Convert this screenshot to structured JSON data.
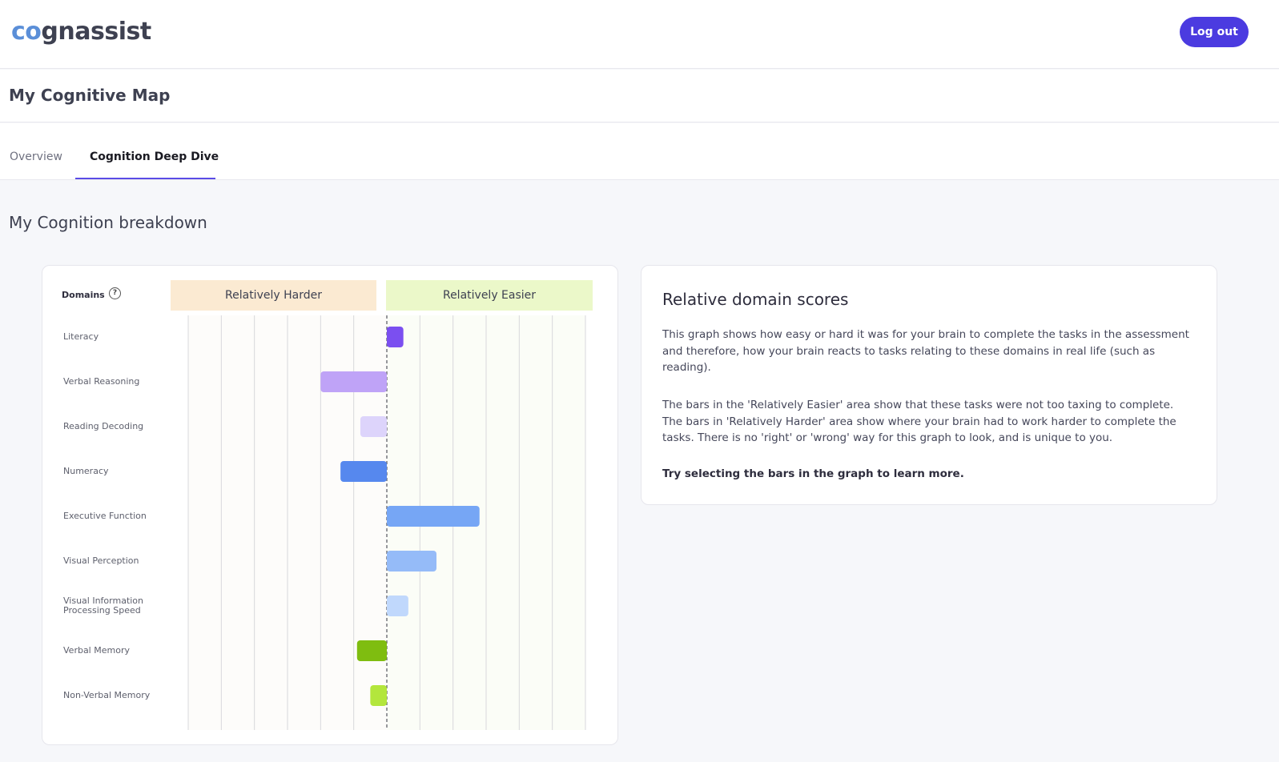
{
  "header": {
    "logo_prefix": "co",
    "logo_suffix": "gnassist",
    "logout_label": "Log out"
  },
  "page": {
    "title": "My Cognitive Map"
  },
  "tabs": [
    {
      "label": "Overview",
      "active": false
    },
    {
      "label": "Cognition Deep Dive",
      "active": true
    }
  ],
  "section": {
    "title": "My Cognition breakdown"
  },
  "chart": {
    "domains_label": "Domains",
    "help_glyph": "?",
    "harder_label": "Relatively Harder",
    "easier_label": "Relatively Easier"
  },
  "chart_data": {
    "type": "bar",
    "orientation": "horizontal-diverging",
    "categories": [
      "Literacy",
      "Verbal Reasoning",
      "Reading Decoding",
      "Numeracy",
      "Executive Function",
      "Visual Perception",
      "Visual Information Processing Speed",
      "Verbal Memory",
      "Non-Verbal Memory"
    ],
    "values": [
      0.5,
      -2.0,
      -0.8,
      -1.4,
      2.8,
      1.5,
      0.65,
      -0.9,
      -0.5
    ],
    "colors": [
      "#7b4ff0",
      "#bfa3f7",
      "#ddd4fb",
      "#5688ee",
      "#76a6f5",
      "#95bbf8",
      "#c0d8fc",
      "#7fbd10",
      "#b3e63c"
    ],
    "xlim": [
      -6,
      6
    ],
    "grid": true,
    "legend": "none"
  },
  "info": {
    "title": "Relative domain scores",
    "paragraph1": "This graph shows how easy or hard it was for your brain to complete the tasks in the assessment and therefore, how your brain reacts to tasks relating to these domains in real life (such as reading).",
    "paragraph2": "The bars in the 'Relatively Easier' area show that these tasks were not too taxing to complete. The bars in 'Relatively Harder' area show where your brain had to work harder to complete the tasks. There is no 'right' or 'wrong' way for this graph to look, and is unique to you.",
    "paragraph3": "Try selecting the bars in the graph to learn more."
  }
}
